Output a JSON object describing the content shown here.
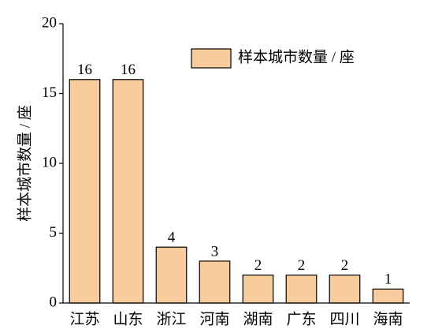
{
  "chart_data": {
    "type": "bar",
    "y_label": "样本城市数量 / 座",
    "categories": [
      "江苏",
      "山东",
      "浙江",
      "河南",
      "湖南",
      "广东",
      "四川",
      "海南"
    ],
    "series": [
      {
        "name": "样本城市数量 / 座",
        "color": "#f9cc9d",
        "values": [
          16,
          16,
          4,
          3,
          2,
          2,
          2,
          1
        ]
      }
    ],
    "ylim": [
      0,
      20
    ],
    "yticks": [
      0,
      5,
      10,
      15,
      20
    ],
    "grid": false,
    "legend": "upper right",
    "data_labels": true
  }
}
